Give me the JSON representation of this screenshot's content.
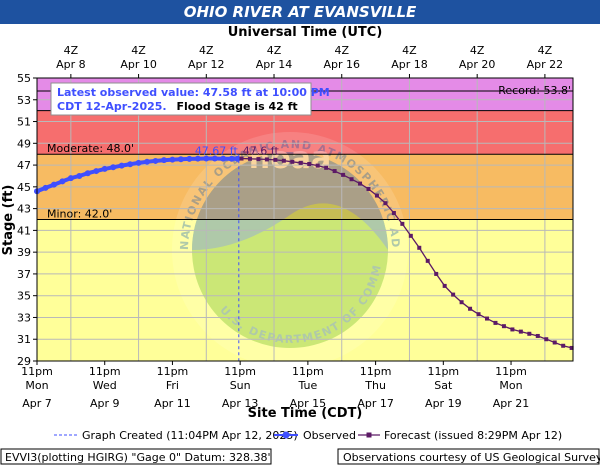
{
  "chart_data": {
    "type": "line",
    "title": "OHIO RIVER AT EVANSVILLE",
    "top_axis_label": "Universal Time (UTC)",
    "top_ticks": [
      {
        "day": 8,
        "time": "4Z",
        "date": "Apr  8"
      },
      {
        "day": 10,
        "time": "4Z",
        "date": "Apr 10"
      },
      {
        "day": 12,
        "time": "4Z",
        "date": "Apr 12"
      },
      {
        "day": 14,
        "time": "4Z",
        "date": "Apr 14"
      },
      {
        "day": 16,
        "time": "4Z",
        "date": "Apr 16"
      },
      {
        "day": 18,
        "time": "4Z",
        "date": "Apr 18"
      },
      {
        "day": 20,
        "time": "4Z",
        "date": "Apr 20"
      },
      {
        "day": 22,
        "time": "4Z",
        "date": "Apr 22"
      }
    ],
    "xlabel": "Site Time (CDT)",
    "bottom_ticks": [
      {
        "day": 7,
        "time": "11pm",
        "weekday": "Mon",
        "date": "Apr 7"
      },
      {
        "day": 9,
        "time": "11pm",
        "weekday": "Wed",
        "date": "Apr 9"
      },
      {
        "day": 11,
        "time": "11pm",
        "weekday": "Fri",
        "date": "Apr 11"
      },
      {
        "day": 13,
        "time": "11pm",
        "weekday": "Sun",
        "date": "Apr 13"
      },
      {
        "day": 15,
        "time": "11pm",
        "weekday": "Tue",
        "date": "Apr 15"
      },
      {
        "day": 17,
        "time": "11pm",
        "weekday": "Thu",
        "date": "Apr 17"
      },
      {
        "day": 19,
        "time": "11pm",
        "weekday": "Sat",
        "date": "Apr 19"
      },
      {
        "day": 21,
        "time": "11pm",
        "weekday": "Mon",
        "date": "Apr 21"
      }
    ],
    "x_unit": "days of April 2025 (CDT)",
    "xlim": [
      7.0,
      22.83
    ],
    "ylabel": "Stage (ft)",
    "ylim": [
      29,
      55
    ],
    "yticks": [
      29,
      31,
      33,
      35,
      37,
      39,
      41,
      43,
      45,
      47,
      49,
      51,
      53,
      55
    ],
    "grid": true,
    "flood_categories": [
      {
        "name": "Minor",
        "label": "Minor: 42.0'",
        "from": 42.0,
        "to": 48.0,
        "color": "#f7bb62"
      },
      {
        "name": "Moderate",
        "label": "Moderate: 48.0'",
        "from": 48.0,
        "to": 52.0,
        "color": "#f66e6e"
      },
      {
        "name": "Major",
        "label": "",
        "from": 52.0,
        "to": 55.0,
        "color": "#e48be7"
      },
      {
        "name": "Below",
        "label": "",
        "from": 29.0,
        "to": 42.0,
        "color": "#ffff99"
      }
    ],
    "record": {
      "label": "Record: 53.8'",
      "value": 53.8
    },
    "flood_lines": [
      42.0,
      48.0,
      52.0,
      53.8
    ],
    "graph_created_day": 12.96,
    "series": [
      {
        "name": "Observed",
        "color": "#3f4fff",
        "points": [
          [
            7.0,
            44.6
          ],
          [
            7.25,
            44.9
          ],
          [
            7.5,
            45.2
          ],
          [
            7.75,
            45.5
          ],
          [
            8.0,
            45.8
          ],
          [
            8.25,
            46.0
          ],
          [
            8.5,
            46.25
          ],
          [
            8.75,
            46.45
          ],
          [
            9.0,
            46.65
          ],
          [
            9.25,
            46.8
          ],
          [
            9.5,
            46.95
          ],
          [
            9.75,
            47.08
          ],
          [
            10.0,
            47.2
          ],
          [
            10.25,
            47.3
          ],
          [
            10.5,
            47.38
          ],
          [
            10.75,
            47.45
          ],
          [
            11.0,
            47.5
          ],
          [
            11.25,
            47.54
          ],
          [
            11.5,
            47.57
          ],
          [
            11.75,
            47.59
          ],
          [
            12.0,
            47.6
          ],
          [
            12.25,
            47.6
          ],
          [
            12.5,
            47.59
          ],
          [
            12.75,
            47.58
          ],
          [
            12.92,
            47.58
          ]
        ],
        "peak_label": "47.67 ft"
      },
      {
        "name": "Forecast",
        "color": "#5c1a66",
        "points": [
          [
            13.04,
            47.6
          ],
          [
            13.29,
            47.58
          ],
          [
            13.54,
            47.55
          ],
          [
            13.79,
            47.52
          ],
          [
            14.04,
            47.48
          ],
          [
            14.29,
            47.4
          ],
          [
            14.54,
            47.3
          ],
          [
            14.79,
            47.2
          ],
          [
            15.04,
            47.1
          ],
          [
            15.29,
            46.95
          ],
          [
            15.54,
            46.75
          ],
          [
            15.79,
            46.45
          ],
          [
            16.04,
            46.1
          ],
          [
            16.29,
            45.7
          ],
          [
            16.54,
            45.3
          ],
          [
            16.79,
            44.8
          ],
          [
            17.04,
            44.2
          ],
          [
            17.29,
            43.5
          ],
          [
            17.54,
            42.6
          ],
          [
            17.79,
            41.6
          ],
          [
            18.04,
            40.5
          ],
          [
            18.29,
            39.4
          ],
          [
            18.54,
            38.2
          ],
          [
            18.79,
            37.0
          ],
          [
            19.04,
            35.9
          ],
          [
            19.29,
            35.1
          ],
          [
            19.54,
            34.4
          ],
          [
            19.79,
            33.8
          ],
          [
            20.04,
            33.3
          ],
          [
            20.29,
            32.9
          ],
          [
            20.54,
            32.5
          ],
          [
            20.79,
            32.2
          ],
          [
            21.04,
            31.9
          ],
          [
            21.29,
            31.7
          ],
          [
            21.54,
            31.5
          ],
          [
            21.79,
            31.3
          ],
          [
            22.04,
            31.0
          ],
          [
            22.29,
            30.7
          ],
          [
            22.54,
            30.4
          ],
          [
            22.79,
            30.2
          ]
        ],
        "peak_label": "47.6 ft"
      }
    ],
    "annotation": {
      "line1": "Latest observed value: 47.58 ft at 10:00 PM",
      "line2": "CDT 12-Apr-2025.",
      "line2_bold": "Flood Stage is 42 ft"
    },
    "legend": {
      "graph_created": "Graph Created (11:04PM Apr 12, 2025)",
      "observed": "Observed",
      "forecast": "Forecast (issued 8:29PM Apr 12)"
    },
    "footer_left": "EVVI3(plotting HGIRG) \"Gage 0\" Datum: 328.38'",
    "footer_right": "Observations courtesy of US Geological Survey",
    "watermark_text": "NATIONAL OCEANIC AND ATMOSPHERIC ADMINISTRATION  U.S. DEPARTMENT OF COMMERCE",
    "watermark_logo": "noaa"
  }
}
